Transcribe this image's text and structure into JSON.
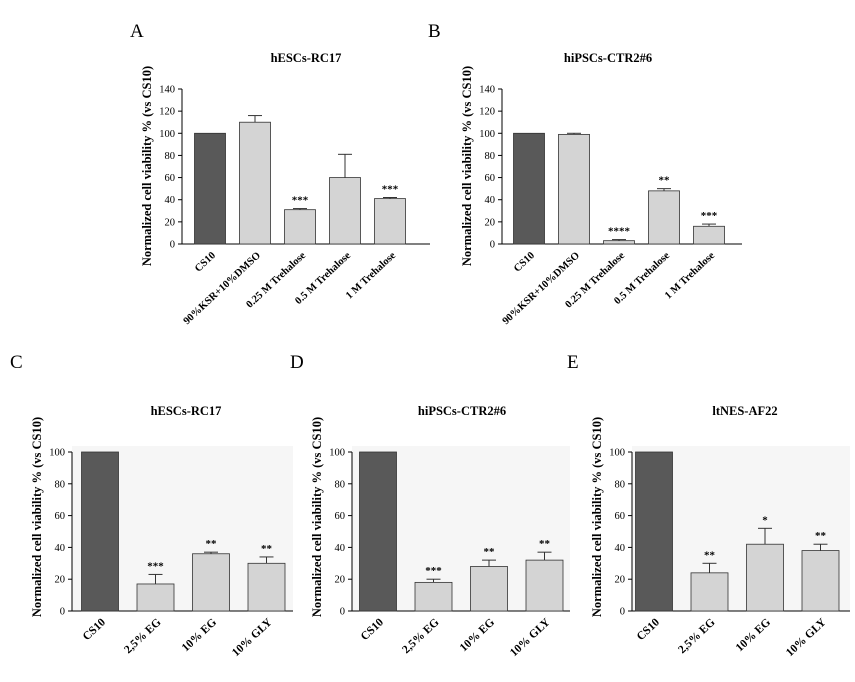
{
  "chart_data": [
    {
      "type": "bar",
      "panel": "A",
      "title": "hESCs-RC17",
      "xlabel": "",
      "ylabel": "Normalized cell viability % (vs CS10)",
      "ylim": [
        0,
        140
      ],
      "yticks": [
        0,
        20,
        40,
        60,
        80,
        100,
        120,
        140
      ],
      "categories": [
        "CS10",
        "90%KSR+10%DMSO",
        "0.25 M Trehalose",
        "0.5 M Trehalose",
        "1 M Trehalose"
      ],
      "values": [
        100,
        110,
        31,
        60,
        41
      ],
      "errors": [
        0,
        6,
        1,
        21,
        1
      ],
      "significance": [
        "",
        "",
        "***",
        "",
        "***"
      ],
      "colors": [
        "#595959",
        "#d4d4d4",
        "#d4d4d4",
        "#d4d4d4",
        "#d4d4d4"
      ]
    },
    {
      "type": "bar",
      "panel": "B",
      "title": "hiPSCs-CTR2#6",
      "xlabel": "",
      "ylabel": "Normalized cell viability % (vs CS10)",
      "ylim": [
        0,
        140
      ],
      "yticks": [
        0,
        20,
        40,
        60,
        80,
        100,
        120,
        140
      ],
      "categories": [
        "CS10",
        "90%KSR+10%DMSO",
        "0.25 M Trehalose",
        "0.5 M Trehalose",
        "1 M Trehalose"
      ],
      "values": [
        100,
        99,
        3,
        48,
        16
      ],
      "errors": [
        0,
        1,
        1,
        2,
        2
      ],
      "significance": [
        "",
        "",
        "****",
        "**",
        "***"
      ],
      "colors": [
        "#595959",
        "#d4d4d4",
        "#d4d4d4",
        "#d4d4d4",
        "#d4d4d4"
      ]
    },
    {
      "type": "bar",
      "panel": "C",
      "title": "hESCs-RC17",
      "xlabel": "",
      "ylabel": "Normalized cell viability % (vs CS10)",
      "ylim": [
        0,
        100
      ],
      "yticks": [
        0,
        20,
        40,
        60,
        80,
        100
      ],
      "categories": [
        "CS10",
        "2,5% EG",
        "10% EG",
        "10% GLY"
      ],
      "values": [
        100,
        17,
        36,
        30
      ],
      "errors": [
        0,
        6,
        1,
        4
      ],
      "significance": [
        "",
        "***",
        "**",
        "**"
      ],
      "colors": [
        "#595959",
        "#d4d4d4",
        "#d4d4d4",
        "#d4d4d4"
      ]
    },
    {
      "type": "bar",
      "panel": "D",
      "title": "hiPSCs-CTR2#6",
      "xlabel": "",
      "ylabel": "Normalized cell viability % (vs CS10)",
      "ylim": [
        0,
        100
      ],
      "yticks": [
        0,
        20,
        40,
        60,
        80,
        100
      ],
      "categories": [
        "CS10",
        "2,5% EG",
        "10% EG",
        "10% GLY"
      ],
      "values": [
        100,
        18,
        28,
        32
      ],
      "errors": [
        0,
        2,
        4,
        5
      ],
      "significance": [
        "",
        "***",
        "**",
        "**"
      ],
      "colors": [
        "#595959",
        "#d4d4d4",
        "#d4d4d4",
        "#d4d4d4"
      ]
    },
    {
      "type": "bar",
      "panel": "E",
      "title": "ltNES-AF22",
      "xlabel": "",
      "ylabel": "Normalized cell viability % (vs CS10)",
      "ylim": [
        0,
        100
      ],
      "yticks": [
        0,
        20,
        40,
        60,
        80,
        100
      ],
      "categories": [
        "CS10",
        "2,5% EG",
        "10% EG",
        "10% GLY"
      ],
      "values": [
        100,
        24,
        42,
        38
      ],
      "errors": [
        0,
        6,
        10,
        4
      ],
      "significance": [
        "",
        "**",
        "*",
        "**"
      ],
      "colors": [
        "#595959",
        "#d4d4d4",
        "#d4d4d4",
        "#d4d4d4"
      ]
    }
  ]
}
